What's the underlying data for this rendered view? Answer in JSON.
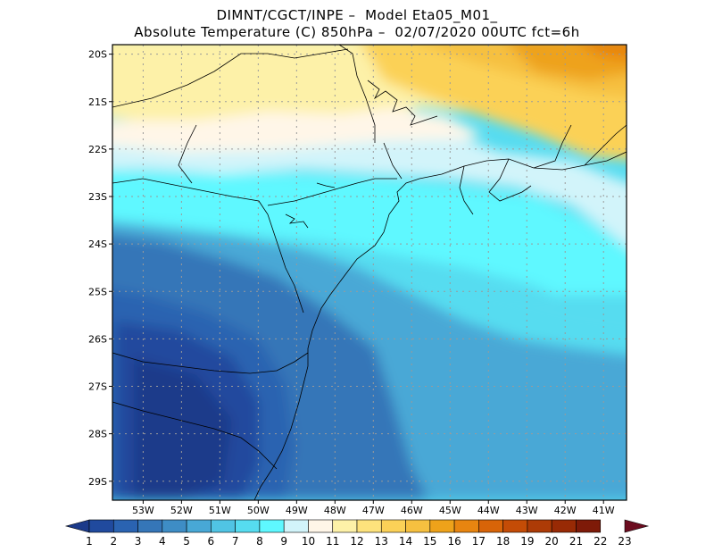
{
  "header": {
    "line1": "DIMNT/CGCT/INPE –  Model Eta05_M01_",
    "line2": "Absolute Temperature (C) 850hPa –  02/07/2020 00UTC fct=6h"
  },
  "map": {
    "lon_labels": [
      "53W",
      "52W",
      "51W",
      "50W",
      "49W",
      "48W",
      "47W",
      "46W",
      "45W",
      "44W",
      "43W",
      "42W",
      "41W"
    ],
    "lat_labels": [
      "20S",
      "21S",
      "22S",
      "23S",
      "24S",
      "25S",
      "26S",
      "27S",
      "28S",
      "29S"
    ],
    "lon_range": [
      -53.8,
      -40.4
    ],
    "lat_range": [
      -29.4,
      -19.8
    ],
    "grid": "dotted"
  },
  "colorbar": {
    "labels": [
      "1",
      "2",
      "3",
      "4",
      "5",
      "6",
      "7",
      "8",
      "9",
      "10",
      "11",
      "12",
      "13",
      "14",
      "15",
      "16",
      "17",
      "18",
      "19",
      "20",
      "21",
      "22",
      "23"
    ],
    "colors": [
      "#1b3a8a",
      "#204a9e",
      "#2a63b1",
      "#3576b8",
      "#3e8dc5",
      "#48a8d6",
      "#50c4e4",
      "#56dcf0",
      "#5ef8ff",
      "#d2f4fa",
      "#fff6e8",
      "#fdf1a8",
      "#fde27c",
      "#fbd157",
      "#f6c040",
      "#eea21a",
      "#e88510",
      "#d86408",
      "#c44c06",
      "#ad3b06",
      "#982a05",
      "#7e1a08",
      "#6c0c1f"
    ]
  }
}
